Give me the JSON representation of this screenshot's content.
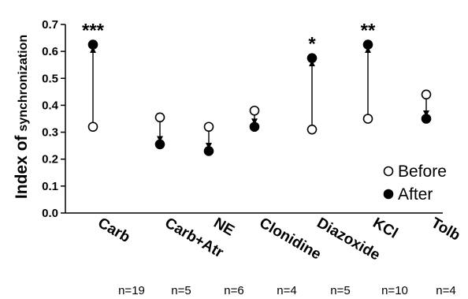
{
  "chart_data": {
    "type": "scatter",
    "ylabel_prefix": "Index of",
    "ylabel_suffix": "synchronization",
    "ylim": [
      0,
      0.7
    ],
    "yticks": [
      "0.0",
      "0.1",
      "0.2",
      "0.3",
      "0.4",
      "0.5",
      "0.6",
      "0.7"
    ],
    "categories": [
      "Carb",
      "Carb+Atr",
      "NE",
      "Clonidine",
      "Diazoxide",
      "KCl",
      "Tolb"
    ],
    "n_labels": [
      "n=19",
      "n=5",
      "n=6",
      "n=4",
      "n=5",
      "n=10",
      "n=4"
    ],
    "significance": [
      "***",
      "",
      "",
      "",
      "*",
      "**",
      ""
    ],
    "series": [
      {
        "name": "Before",
        "marker": "open-circle",
        "values": [
          0.32,
          0.355,
          0.32,
          0.38,
          0.31,
          0.35,
          0.44
        ]
      },
      {
        "name": "After",
        "marker": "filled-circle",
        "values": [
          0.625,
          0.255,
          0.23,
          0.32,
          0.575,
          0.625,
          0.35
        ]
      }
    ],
    "legend_position": "bottom-right",
    "grid": false
  }
}
